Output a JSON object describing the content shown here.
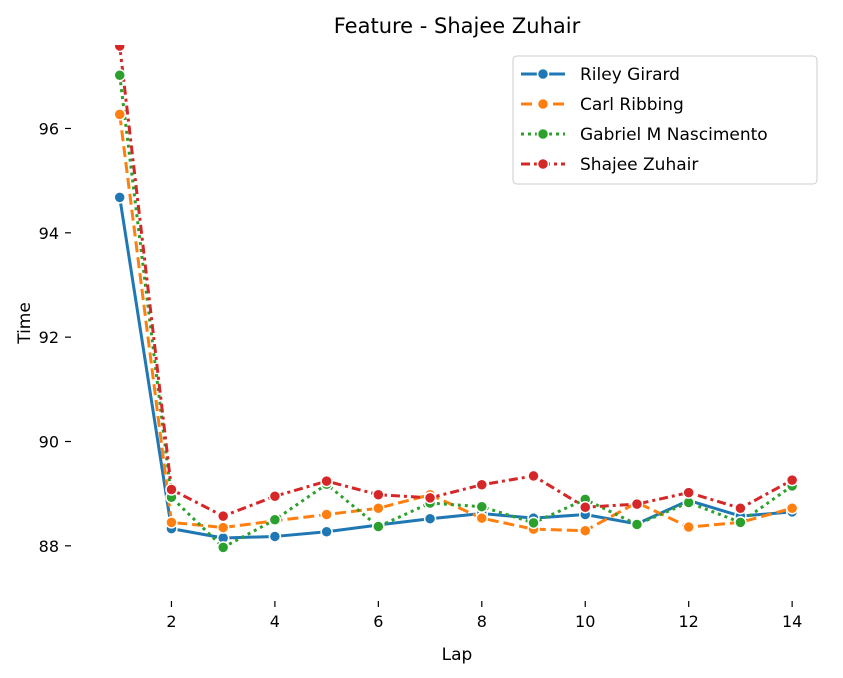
{
  "chart_data": {
    "type": "line",
    "title": "Feature - Shajee Zuhair",
    "xlabel": "Lap",
    "ylabel": "Time",
    "xlim": [
      0.0,
      14.5
    ],
    "ylim": [
      87.0,
      97.6
    ],
    "xticks": [
      2,
      4,
      6,
      8,
      10,
      12,
      14
    ],
    "yticks": [
      88,
      90,
      92,
      94,
      96
    ],
    "grid": false,
    "legend_position": "top-right",
    "x": [
      1,
      2,
      3,
      4,
      5,
      6,
      7,
      8,
      9,
      10,
      11,
      12,
      13,
      14
    ],
    "series": [
      {
        "name": "Riley Girard",
        "color": "#1f77b4",
        "dash": "solid",
        "values": [
          94.68,
          88.33,
          88.15,
          88.18,
          88.27,
          88.4,
          88.52,
          88.62,
          88.53,
          88.6,
          88.42,
          88.87,
          88.57,
          88.65
        ]
      },
      {
        "name": "Carl Ribbing",
        "color": "#ff7f0e",
        "dash": "dashed",
        "values": [
          96.27,
          88.45,
          88.35,
          88.48,
          88.6,
          88.72,
          88.98,
          88.53,
          88.32,
          88.29,
          88.83,
          88.36,
          88.45,
          88.72
        ]
      },
      {
        "name": "Gabriel M Nascimento",
        "color": "#2ca02c",
        "dash": "dotted",
        "values": [
          97.02,
          88.93,
          87.97,
          88.5,
          89.18,
          88.37,
          88.82,
          88.75,
          88.44,
          88.89,
          88.41,
          88.83,
          88.45,
          89.15
        ]
      },
      {
        "name": "Shajee Zuhair",
        "color": "#d62728",
        "dash": "dashdot",
        "values": [
          97.58,
          89.08,
          88.57,
          88.95,
          89.24,
          88.98,
          88.92,
          89.17,
          89.34,
          88.74,
          88.8,
          89.02,
          88.72,
          89.26
        ]
      }
    ]
  }
}
